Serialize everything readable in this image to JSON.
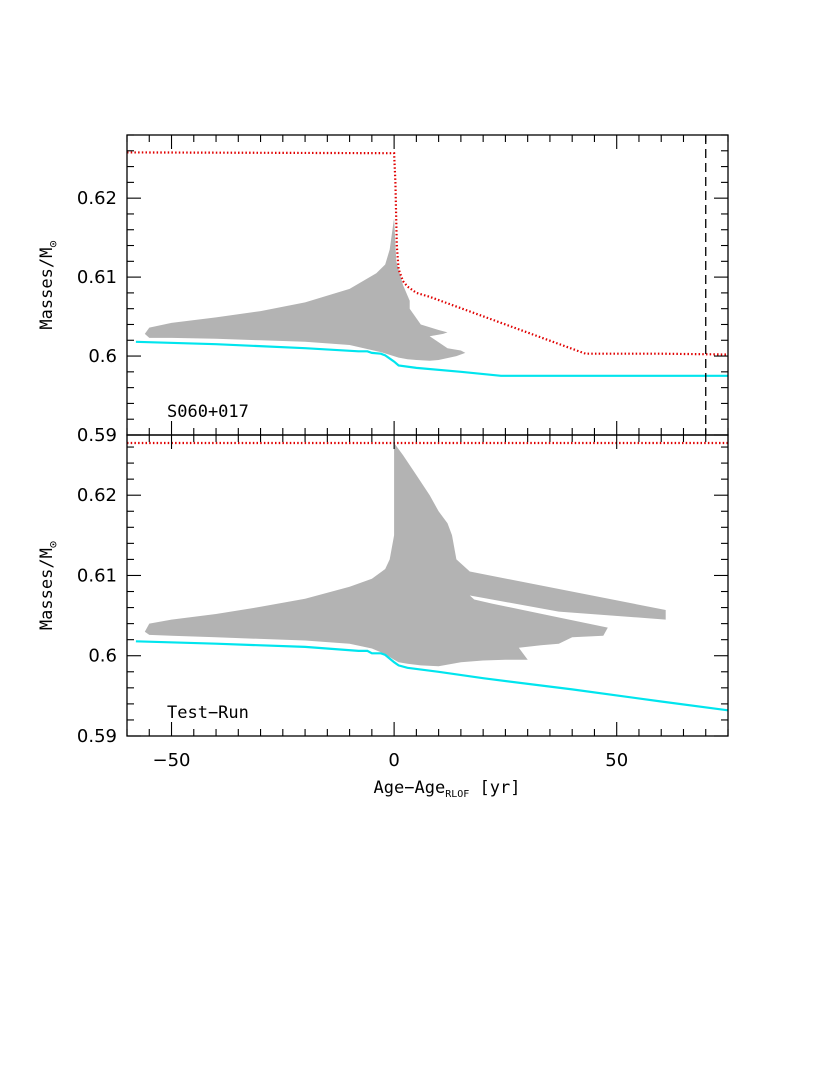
{
  "chart_data": [
    {
      "type": "area",
      "panel": "top",
      "label": "S060+017",
      "xlabel": "Age−Age",
      "xlabel_sub": "RLOF",
      "xlabel_unit": "[yr]",
      "ylabel": "Masses/M",
      "ylabel_sub": "⊙",
      "xlim": [
        -60,
        75
      ],
      "ylim": [
        0.59,
        0.628
      ],
      "xticks": [
        -50,
        0,
        50
      ],
      "xtick_labels": [
        "−50",
        "0",
        "50"
      ],
      "yticks": [
        0.59,
        0.6,
        0.61,
        0.62
      ],
      "ytick_labels": [
        "0.59",
        "0.6",
        "0.61",
        "0.62"
      ],
      "vline_x": 70,
      "colors": {
        "region": "#b3b3b3",
        "upper": "#e00000",
        "lower": "#00e5ee",
        "vline": "#000000"
      },
      "series": [
        {
          "name": "upper-mass-dotted",
          "style": "dotted",
          "x": [
            -60,
            0,
            0.3,
            0.6,
            1,
            2,
            3,
            5,
            8,
            43,
            60,
            75
          ],
          "y": [
            0.6258,
            0.6257,
            0.622,
            0.614,
            0.611,
            0.6095,
            0.6088,
            0.608,
            0.6075,
            0.6003,
            0.6003,
            0.6002
          ]
        },
        {
          "name": "lower-mass-solid",
          "style": "solid",
          "x": [
            -58,
            -40,
            -20,
            -8,
            -6,
            -5,
            -3,
            -2,
            0,
            1,
            5,
            15,
            24,
            50,
            75
          ],
          "y": [
            0.6018,
            0.6015,
            0.601,
            0.6006,
            0.6006,
            0.6004,
            0.6003,
            0.6001,
            0.5993,
            0.5988,
            0.5985,
            0.598,
            0.5975,
            0.5975,
            0.5975
          ]
        },
        {
          "name": "grey-region",
          "style": "fill",
          "x": [
            -56,
            -55,
            -50,
            -40,
            -30,
            -20,
            -10,
            -4,
            -2,
            -1,
            0,
            0.5,
            2,
            3.5,
            3.5,
            6,
            10,
            12,
            11,
            8,
            12,
            15,
            16,
            14,
            10,
            8,
            5,
            3,
            1,
            -3,
            -10,
            -20,
            -30,
            -40,
            -50,
            -55,
            -56
          ],
          "y": [
            0.6028,
            0.6036,
            0.6042,
            0.6049,
            0.6057,
            0.6068,
            0.6085,
            0.6105,
            0.6116,
            0.6135,
            0.6175,
            0.612,
            0.609,
            0.607,
            0.606,
            0.604,
            0.6033,
            0.603,
            0.6028,
            0.6025,
            0.601,
            0.6007,
            0.6004,
            0.6,
            0.5995,
            0.5994,
            0.5995,
            0.5996,
            0.5998,
            0.6005,
            0.6014,
            0.6018,
            0.602,
            0.6022,
            0.6023,
            0.6023,
            0.6028
          ]
        }
      ]
    },
    {
      "type": "area",
      "panel": "bottom",
      "label": "Test−Run",
      "xlabel": "Age−Age",
      "xlabel_sub": "RLOF",
      "xlabel_unit": "[yr]",
      "ylabel": "Masses/M",
      "ylabel_sub": "⊙",
      "xlim": [
        -60,
        75
      ],
      "ylim": [
        0.59,
        0.6275
      ],
      "xticks": [
        -50,
        0,
        50
      ],
      "xtick_labels": [
        "−50",
        "0",
        "50"
      ],
      "yticks": [
        0.59,
        0.6,
        0.61,
        0.62
      ],
      "ytick_labels": [
        "0.59",
        "0.6",
        "0.61",
        "0.62"
      ],
      "colors": {
        "region": "#b3b3b3",
        "upper": "#e00000",
        "lower": "#00e5ee"
      },
      "series": [
        {
          "name": "upper-mass-dotted",
          "style": "dotted",
          "x": [
            -60,
            75
          ],
          "y": [
            0.6265,
            0.6265
          ]
        },
        {
          "name": "lower-mass-solid",
          "style": "solid",
          "x": [
            -58,
            -40,
            -20,
            -8,
            -6,
            -5,
            -3,
            -2,
            0,
            1,
            3,
            10,
            20,
            40,
            60,
            75
          ],
          "y": [
            0.6018,
            0.6015,
            0.6011,
            0.6006,
            0.6006,
            0.6003,
            0.6003,
            0.6001,
            0.5992,
            0.5988,
            0.5985,
            0.598,
            0.5972,
            0.5958,
            0.5943,
            0.5932
          ]
        },
        {
          "name": "grey-region",
          "style": "fill",
          "x": [
            -56,
            -55,
            -50,
            -40,
            -30,
            -20,
            -10,
            -5,
            -2,
            -1,
            0,
            0,
            2,
            5,
            8,
            10,
            12,
            13,
            14,
            17,
            61,
            61,
            37,
            20,
            17,
            18,
            22,
            35,
            48,
            47,
            40,
            37,
            33,
            28,
            30,
            25,
            20,
            15,
            10,
            6,
            3,
            1,
            0,
            -2,
            -5,
            -10,
            -20,
            -30,
            -40,
            -50,
            -55,
            -56
          ],
          "y": [
            0.603,
            0.604,
            0.6045,
            0.6052,
            0.6061,
            0.6071,
            0.6086,
            0.6096,
            0.6108,
            0.612,
            0.615,
            0.6265,
            0.625,
            0.6225,
            0.62,
            0.618,
            0.6165,
            0.615,
            0.612,
            0.6105,
            0.6057,
            0.6045,
            0.6055,
            0.6072,
            0.6075,
            0.607,
            0.6065,
            0.605,
            0.6035,
            0.6025,
            0.6023,
            0.6015,
            0.6013,
            0.601,
            0.5995,
            0.5995,
            0.5994,
            0.5992,
            0.5987,
            0.5988,
            0.599,
            0.5992,
            0.5995,
            0.6002,
            0.6009,
            0.6015,
            0.6019,
            0.6021,
            0.6023,
            0.6025,
            0.6026,
            0.603
          ]
        }
      ]
    }
  ]
}
